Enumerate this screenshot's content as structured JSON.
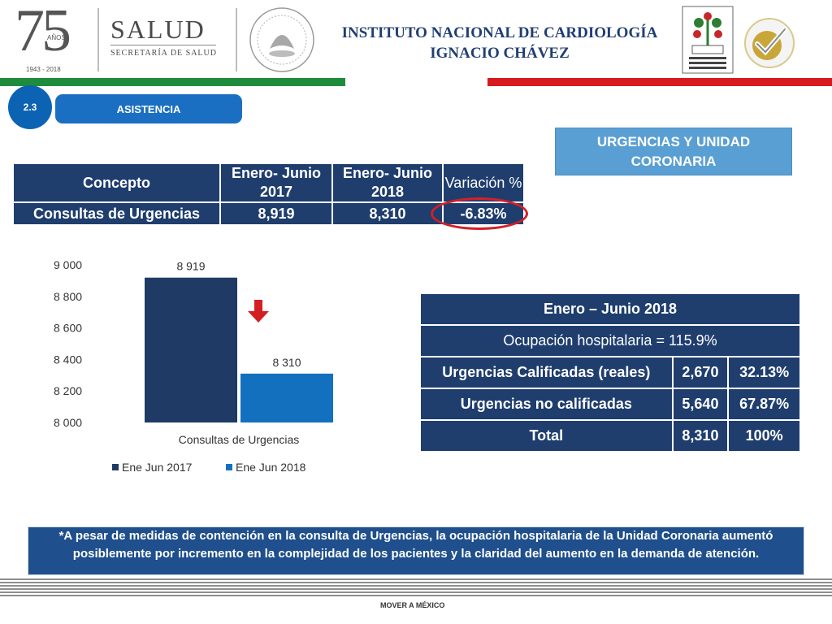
{
  "header": {
    "anniversary_number": "75",
    "anniversary_word": "AÑOS",
    "anniversary_years": "1943 - 2018",
    "salud": "SALUD",
    "secretaria": "SECRETARÍA DE SALUD",
    "institute_line1": "INSTITUTO NACIONAL DE CARDIOLOGÍA",
    "institute_line2": "IGNACIO CHÁVEZ"
  },
  "section": {
    "number": "2.3",
    "label": "ASISTENCIA",
    "topic": "URGENCIAS Y UNIDAD CORONARIA"
  },
  "table1": {
    "headers": [
      "Concepto",
      "Enero- Junio 2017",
      "Enero- Junio 2018",
      "Variación %"
    ],
    "row": [
      "Consultas de Urgencias",
      "8,919",
      "8,310",
      "-6.83%"
    ]
  },
  "chart_data": {
    "type": "bar",
    "categories": [
      "Consultas de Urgencias"
    ],
    "series": [
      {
        "name": "Ene Jun 2017",
        "values": [
          8919
        ],
        "label": "8 919",
        "color": "#1f3a64"
      },
      {
        "name": "Ene Jun 2018",
        "values": [
          8310
        ],
        "label": "8 310",
        "color": "#1270bf"
      }
    ],
    "ylim": [
      8000,
      9000
    ],
    "yticks": [
      "9 000",
      "8 800",
      "8 600",
      "8 400",
      "8 200",
      "8 000"
    ],
    "legend_position": "bottom",
    "grid": false
  },
  "table2": {
    "title": "Enero – Junio 2018",
    "occupancy": "Ocupación hospitalaria = 115.9%",
    "rows": [
      [
        "Urgencias Calificadas (reales)",
        "2,670",
        "32.13%"
      ],
      [
        "Urgencias no calificadas",
        "5,640",
        "67.87%"
      ],
      [
        "Total",
        "8,310",
        "100%"
      ]
    ]
  },
  "note": "*A pesar de medidas de contención en la consulta de Urgencias, la ocupación hospitalaria de la Unidad Coronaria aumentó posiblemente por incremento en la complejidad de los pacientes y la claridad del aumento en la demanda de atención.",
  "footer": {
    "logo_text": "MOVER A MÉXICO"
  },
  "colors": {
    "green": "#1e8c3c",
    "red": "#d61a1f",
    "navy": "#1f3e6e",
    "blue": "#1a6fc2"
  },
  "icons": {
    "down_arrow": "down-arrow-icon",
    "up_arrow": "up-arrow-icon"
  }
}
